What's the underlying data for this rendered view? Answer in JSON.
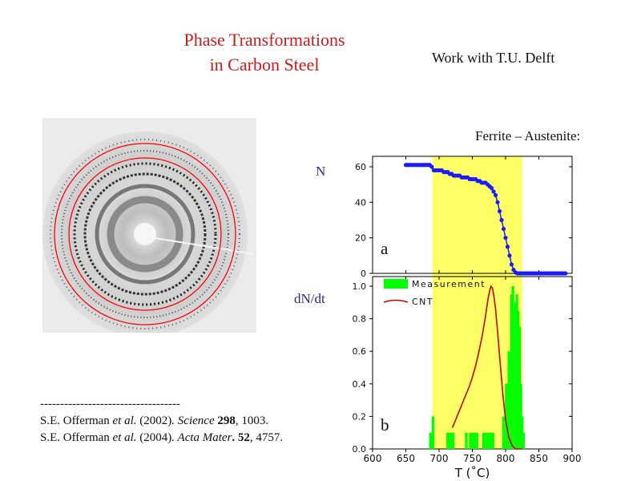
{
  "slide": {
    "title_line1": "Phase Transformations",
    "title_line2": "in  Carbon Steel",
    "subtitle": "Work with T.U. Delft",
    "section_label": "Ferrite – Austenite:",
    "colors": {
      "title": "#cc1a1a",
      "highlight": "#ffff66",
      "series_n": "#1a1aff",
      "measurement": "#00ff00",
      "cnt": "#cc0000",
      "ylabel": "#2b2b8a"
    }
  },
  "image": {
    "name": "x-ray diffraction ring pattern",
    "ring_color": "#ff0000"
  },
  "references": {
    "rule": "-----------------------------------",
    "ref1": {
      "authors": "S.E. Offerman ",
      "etal": "et al.",
      "year": " (2002)",
      "journal": ". Science ",
      "volume": "298",
      "pages": ", 1003."
    },
    "ref2": {
      "authors": "S.E. Offerman ",
      "etal": "et al.",
      "year": " (2004)",
      "journal": ". Acta Mater",
      "volume": ". 52",
      "pages": ", 4757."
    }
  },
  "chart_data": [
    {
      "type": "line",
      "panel": "a",
      "ylabel": "N",
      "xlim": [
        600,
        900
      ],
      "ylim": [
        0,
        65
      ],
      "yticks": [
        "0",
        "20",
        "40",
        "60"
      ],
      "highlight_x": [
        690,
        825
      ],
      "series": [
        {
          "x": [
            650,
            653,
            656,
            659,
            662,
            665,
            668,
            671,
            674,
            677,
            680,
            683,
            686,
            689,
            692,
            695,
            698,
            701,
            704,
            707,
            710,
            713,
            716,
            719,
            722,
            725,
            728,
            731,
            734,
            737,
            740,
            743,
            746,
            749,
            752,
            755,
            758,
            761,
            764,
            767,
            770,
            773,
            776,
            779,
            782,
            785,
            788,
            791,
            794,
            797,
            800,
            803,
            806,
            809,
            812,
            815,
            818,
            821,
            824,
            827,
            830,
            833,
            836,
            839,
            842,
            845,
            848,
            851,
            854,
            857,
            860,
            863,
            866,
            869,
            872,
            875,
            878,
            881,
            884,
            887,
            890
          ],
          "y": [
            61,
            61,
            61,
            61,
            61,
            61,
            61,
            61,
            61,
            61,
            61,
            61,
            61,
            60,
            58,
            58,
            58,
            58,
            58,
            57,
            57,
            57,
            56,
            56,
            55,
            55,
            55,
            55,
            54,
            54,
            54,
            54,
            53,
            53,
            53,
            53,
            52,
            52,
            51,
            51,
            51,
            50,
            49,
            48,
            46,
            44,
            40,
            35,
            30,
            25,
            20,
            15,
            10,
            5,
            2,
            0.5,
            0,
            0,
            0,
            0,
            0,
            0,
            0,
            0,
            0,
            0,
            0,
            0,
            0,
            0,
            0,
            0,
            0,
            0,
            0,
            0,
            0,
            0,
            0,
            0,
            0
          ]
        }
      ]
    },
    {
      "type": "bar",
      "panel": "b",
      "ylabel": "dN/dt",
      "xlabel": "T (˚C)",
      "xlim": [
        600,
        900
      ],
      "ylim": [
        0,
        1.0
      ],
      "xticks": [
        "600",
        "650",
        "700",
        "750",
        "800",
        "850",
        "900"
      ],
      "yticks": [
        "0.0",
        "0.2",
        "0.4",
        "0.6",
        "0.8",
        "1.0"
      ],
      "highlight_x": [
        690,
        825
      ],
      "legend": [
        "Measurement",
        "CNT"
      ],
      "series": [
        {
          "name": "Measurement",
          "x": [
            687,
            691,
            713,
            717,
            721,
            741,
            747,
            751,
            755,
            757,
            767,
            771,
            775,
            779,
            781,
            797,
            801,
            805,
            809,
            811,
            815,
            817,
            819,
            821,
            823,
            825,
            827
          ],
          "width": 4,
          "y": [
            0.1,
            0.2,
            0.1,
            0.1,
            0.1,
            0.1,
            0.1,
            0.1,
            0.1,
            0.1,
            0.1,
            0.1,
            0.1,
            0.1,
            0.1,
            0.2,
            0.4,
            0.6,
            0.95,
            1.0,
            0.9,
            0.95,
            0.85,
            0.75,
            0.4,
            0.2,
            0.1
          ]
        },
        {
          "name": "CNT",
          "x": [
            720,
            725,
            730,
            735,
            740,
            745,
            750,
            755,
            760,
            765,
            770,
            772,
            774,
            776,
            778,
            780,
            782,
            785,
            788,
            792,
            796,
            800,
            805,
            810,
            815,
            820,
            825
          ],
          "y": [
            0.13,
            0.18,
            0.23,
            0.28,
            0.33,
            0.38,
            0.44,
            0.51,
            0.6,
            0.7,
            0.82,
            0.88,
            0.93,
            0.97,
            1.0,
            0.99,
            0.95,
            0.86,
            0.72,
            0.52,
            0.33,
            0.18,
            0.07,
            0.02,
            0.0,
            0.0,
            0.0
          ]
        }
      ]
    }
  ]
}
